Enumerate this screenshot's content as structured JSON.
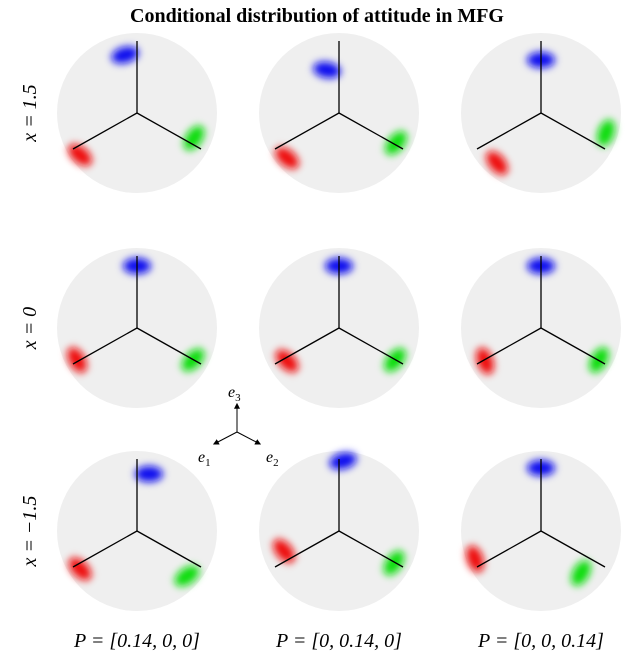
{
  "title": "Conditional distribution of attitude in MFG",
  "row_labels": [
    "x = 1.5",
    "x = 0",
    "x = −1.5"
  ],
  "column_labels": [
    "P = [0.14, 0, 0]",
    "P = [0, 0.14, 0]",
    "P = [0, 0, 0.14]"
  ],
  "axes": [
    {
      "symbol": "e",
      "index": "3"
    },
    {
      "symbol": "e",
      "index": "1"
    },
    {
      "symbol": "e",
      "index": "2"
    }
  ]
}
